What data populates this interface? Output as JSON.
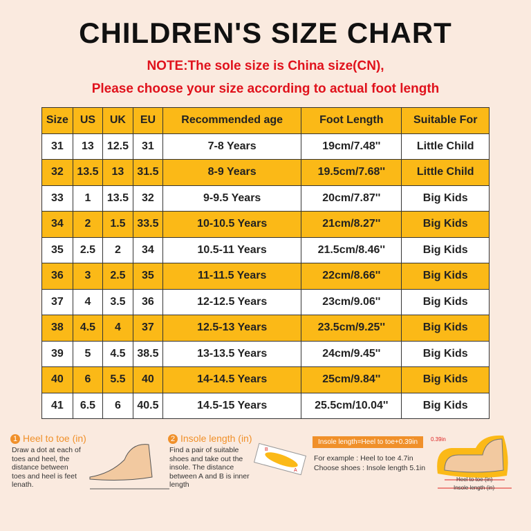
{
  "header": {
    "title": "CHILDREN'S SIZE CHART",
    "notes": [
      "NOTE:The sole size is China size(CN),",
      "Please choose your size according to actual foot length"
    ]
  },
  "table": {
    "columns": [
      "Size",
      "US",
      "UK",
      "EU",
      "Recommended age",
      "Foot Length",
      "Suitable For"
    ],
    "rows": [
      [
        "31",
        "13",
        "12.5",
        "31",
        "7-8 Years",
        "19cm/7.48''",
        "Little Child"
      ],
      [
        "32",
        "13.5",
        "13",
        "31.5",
        "8-9 Years",
        "19.5cm/7.68''",
        "Little Child"
      ],
      [
        "33",
        "1",
        "13.5",
        "32",
        "9-9.5 Years",
        "20cm/7.87''",
        "Big Kids"
      ],
      [
        "34",
        "2",
        "1.5",
        "33.5",
        "10-10.5 Years",
        "21cm/8.27''",
        "Big Kids"
      ],
      [
        "35",
        "2.5",
        "2",
        "34",
        "10.5-11 Years",
        "21.5cm/8.46''",
        "Big Kids"
      ],
      [
        "36",
        "3",
        "2.5",
        "35",
        "11-11.5 Years",
        "22cm/8.66''",
        "Big Kids"
      ],
      [
        "37",
        "4",
        "3.5",
        "36",
        "12-12.5 Years",
        "23cm/9.06''",
        "Big Kids"
      ],
      [
        "38",
        "4.5",
        "4",
        "37",
        "12.5-13 Years",
        "23.5cm/9.25''",
        "Big Kids"
      ],
      [
        "39",
        "5",
        "4.5",
        "38.5",
        "13-13.5 Years",
        "24cm/9.45''",
        "Big Kids"
      ],
      [
        "40",
        "6",
        "5.5",
        "40",
        "14-14.5 Years",
        "25cm/9.84''",
        "Big Kids"
      ],
      [
        "41",
        "6.5",
        "6",
        "40.5",
        "14.5-15 Years",
        "25.5cm/10.04''",
        "Big Kids"
      ]
    ]
  },
  "steps": [
    {
      "number": "1",
      "title": "Heel to toe (in)",
      "lines": [
        "Draw a dot at each of",
        "toes and heel, the",
        "distance between",
        "toes and heel is feet",
        "lenath."
      ]
    },
    {
      "number": "2",
      "title": "Insole length (in)",
      "lines": [
        "Find a pair of suitable",
        "shoes and take out the",
        "insole. The distance",
        "between A and B is inner",
        "length"
      ]
    }
  ],
  "formula": "Insole length=Heel to toe+0.39in",
  "example": [
    "For example : Heel to toe  4.7in",
    "Choose shoes : Insole length 5.1in"
  ],
  "diagram": {
    "point_a": "A",
    "point_b": "B",
    "gap": "0.39in",
    "heel_to_toe": "Heel to toe (in)",
    "insole_length": "Insole length (in)"
  }
}
